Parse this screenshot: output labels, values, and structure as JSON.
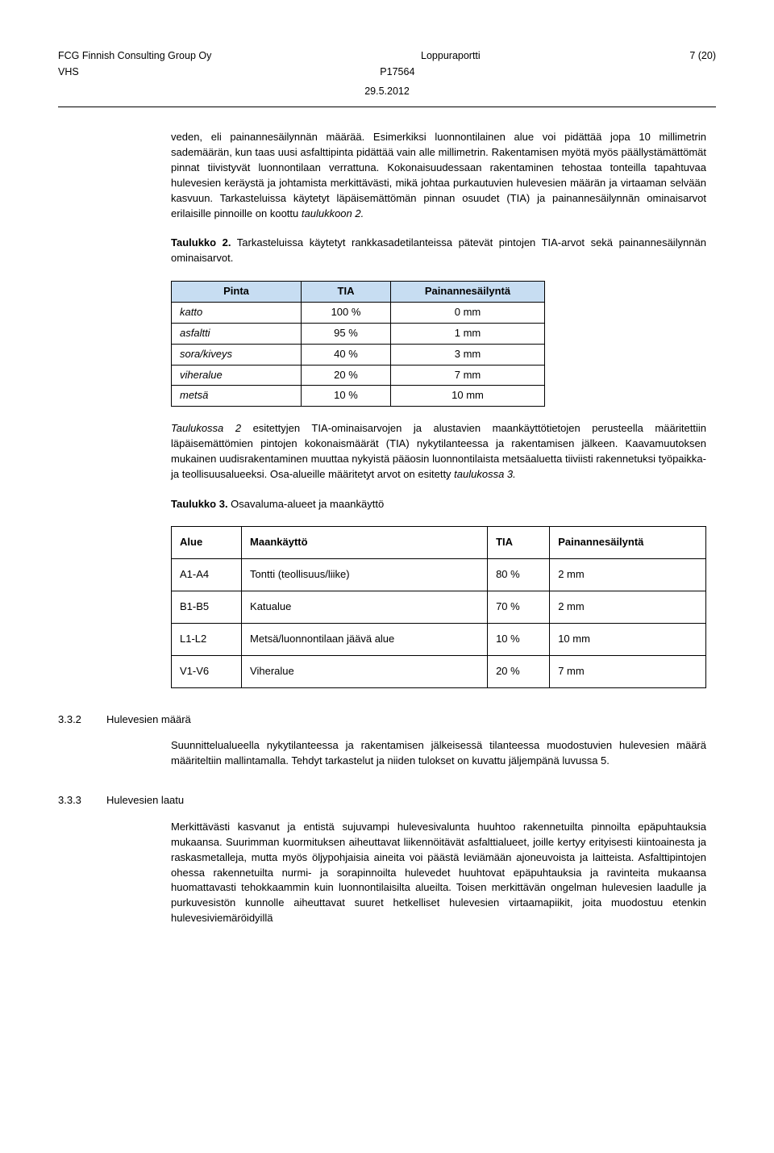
{
  "header": {
    "left_line1": "FCG Finnish Consulting Group Oy",
    "left_line2": "VHS",
    "center_line1": "Loppuraportti",
    "center_line2": "P17564",
    "right": "7 (20)",
    "date": "29.5.2012"
  },
  "para1a": "veden, eli painannesäilynnän määrää. Esimerkiksi luonnontilainen alue voi pidättää jopa 10 millimetrin sademäärän, kun taas uusi asfalttipinta pidättää vain alle millimetrin. Rakentamisen myötä myös päällystämättömät pinnat tiivistyvät luonnontilaan verrattuna. Kokonaisuudessaan rakentaminen tehostaa tonteilla tapahtuvaa hulevesien keräystä ja johtamista merkittävästi, mikä johtaa purkautuvien hulevesien määrän ja virtaaman selvään kasvuun. Tarkasteluissa käytetyt läpäisemättömän pinnan osuudet (TIA) ja painannesäilynnän ominaisarvot erilaisille pinnoille on koottu ",
  "para1b": "taulukkoon 2.",
  "tbl2_caption_a": "Taulukko 2.",
  "tbl2_caption_b": " Tarkasteluissa käytetyt rankkasadetilanteissa pätevät pintojen TIA-arvot sekä painannesäilynnän ominaisarvot.",
  "tbl2": {
    "headers": [
      "Pinta",
      "TIA",
      "Painannesäilyntä"
    ],
    "rows": [
      [
        "katto",
        "100 %",
        "0 mm"
      ],
      [
        "asfaltti",
        "95 %",
        "1 mm"
      ],
      [
        "sora/kiveys",
        "40 %",
        "3 mm"
      ],
      [
        "viheralue",
        "20 %",
        "7 mm"
      ],
      [
        "metsä",
        "10 %",
        "10 mm"
      ]
    ]
  },
  "para2a": "Taulukossa 2",
  "para2b": " esitettyjen TIA-ominaisarvojen ja alustavien maankäyttötietojen perusteella määritettiin läpäisemättömien pintojen kokonaismäärät (TIA) nykytilanteessa ja rakentamisen jälkeen. Kaavamuutoksen mukainen uudisrakentaminen muuttaa nykyistä pääosin luonnontilaista metsäaluetta tiiviisti rakennetuksi työpaikka- ja teollisuusalueeksi. Osa-alueille määritetyt arvot on esitetty ",
  "para2c": "taulukossa 3.",
  "tbl3_caption_a": "Taulukko 3.",
  "tbl3_caption_b": " Osavaluma-alueet ja maankäyttö",
  "tbl3": {
    "headers": [
      "Alue",
      "Maankäyttö",
      "TIA",
      "Painannesäilyntä"
    ],
    "rows": [
      [
        "A1-A4",
        "Tontti (teollisuus/liike)",
        "80 %",
        "2 mm"
      ],
      [
        "B1-B5",
        "Katualue",
        "70 %",
        "2 mm"
      ],
      [
        "L1-L2",
        "Metsä/luonnontilaan jäävä alue",
        "10 %",
        "10 mm"
      ],
      [
        "V1-V6",
        "Viheralue",
        "20 %",
        "7 mm"
      ]
    ]
  },
  "sec332": {
    "num": "3.3.2",
    "title": "Hulevesien määrä"
  },
  "para3": "Suunnittelualueella nykytilanteessa ja rakentamisen jälkeisessä tilanteessa muodostuvien hulevesien määrä määriteltiin mallintamalla. Tehdyt tarkastelut ja niiden tulokset on kuvattu jäljempänä luvussa 5.",
  "sec333": {
    "num": "3.3.3",
    "title": "Hulevesien laatu"
  },
  "para4": "Merkittävästi kasvanut ja entistä sujuvampi hulevesivalunta huuhtoo rakennetuilta pinnoilta epäpuhtauksia mukaansa. Suurimman kuormituksen aiheuttavat liikennöitävät asfalttialueet, joille kertyy erityisesti kiintoainesta ja raskasmetalleja, mutta myös öljypohjaisia aineita voi päästä leviämään ajoneuvoista ja laitteista. Asfalttipintojen ohessa rakennetuilta nurmi- ja sorapinnoilta hulevedet huuhtovat epäpuhtauksia ja ravinteita mukaansa huomattavasti tehokkaammin kuin luonnontilaisilta alueilta. Toisen merkittävän ongelman hulevesien laadulle ja purkuvesistön kunnolle aiheuttavat suuret hetkelliset hulevesien virtaamapiikit, joita muodostuu etenkin hulevesiviemäröidyillä"
}
